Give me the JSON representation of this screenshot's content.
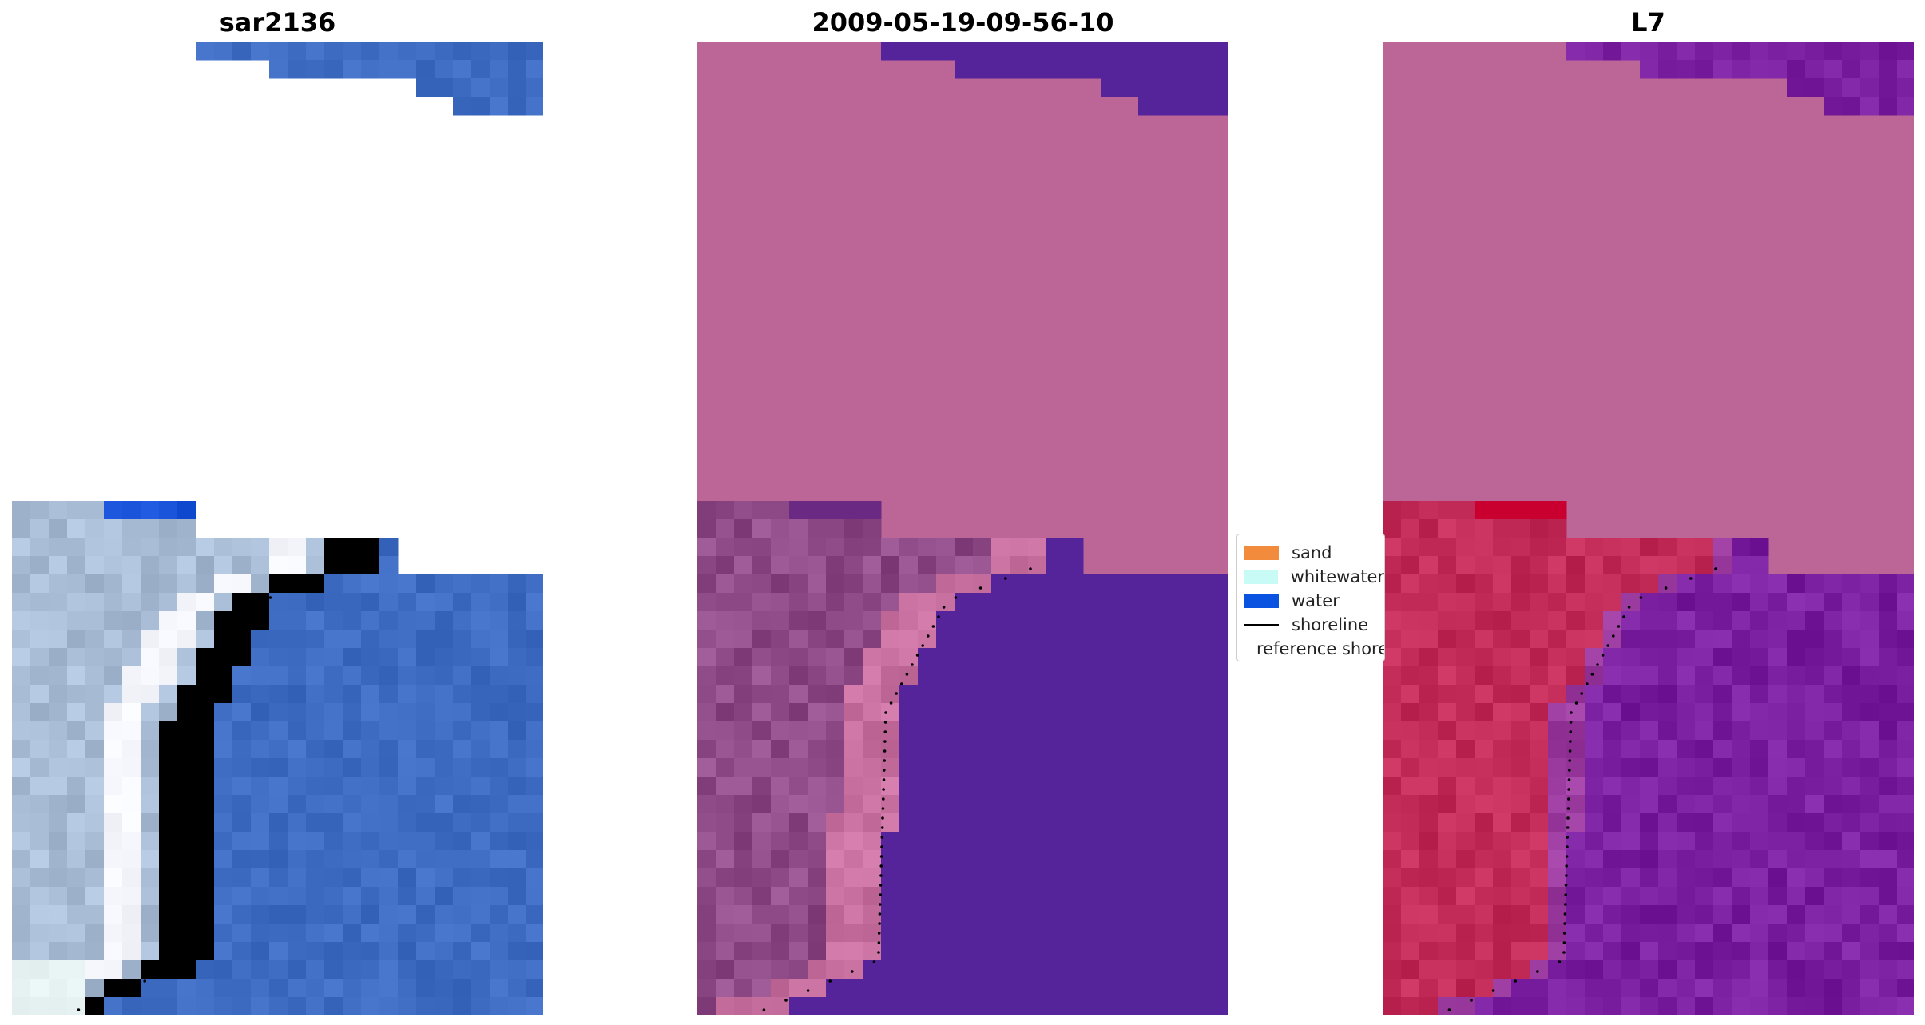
{
  "panels": [
    {
      "title": "sar2136",
      "kind": "rgb"
    },
    {
      "title": "2009-05-19-09-56-10",
      "kind": "class"
    },
    {
      "title": "L7",
      "kind": "index"
    }
  ],
  "legend": {
    "items": [
      {
        "label": "sand",
        "color": "#f28c3c",
        "type": "patch"
      },
      {
        "label": "whitewater",
        "color": "#c8fbf5",
        "type": "patch"
      },
      {
        "label": "water",
        "color": "#0a52e0",
        "type": "patch"
      },
      {
        "label": "shoreline",
        "color": "#000000",
        "type": "line"
      },
      {
        "label": "reference shoreline",
        "color": "#9b2c2c",
        "type": "patch"
      }
    ]
  },
  "colors": {
    "rgb_water": "#3d6cc2",
    "rgb_deep_water": "#1650d6",
    "rgb_beach": "#a9bcd6",
    "rgb_surf": "#f4f6fb",
    "class_background": "#bc6698",
    "class_water": "#55239a",
    "class_beach": "#8e4a86",
    "index_land": "#c22a58",
    "index_water": "#7a1f9f",
    "shoreline": "#000000"
  }
}
